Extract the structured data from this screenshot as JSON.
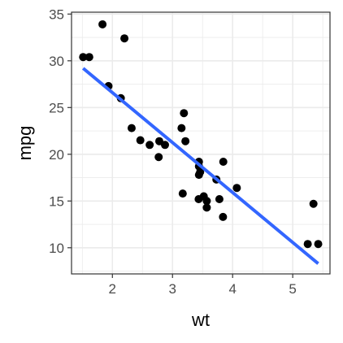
{
  "chart_data": {
    "type": "scatter",
    "title": "",
    "xlabel": "wt",
    "ylabel": "mpg",
    "xlim": [
      1.32,
      5.62
    ],
    "ylim": [
      7.2,
      35.2
    ],
    "x_ticks": [
      2,
      3,
      4,
      5
    ],
    "x_tick_labels": [
      "2",
      "3",
      "4",
      "5"
    ],
    "y_ticks": [
      10,
      15,
      20,
      25,
      30,
      35
    ],
    "y_tick_labels": [
      "10",
      "15",
      "20",
      "25",
      "30",
      "35"
    ],
    "grid": true,
    "legend": "none",
    "points": [
      {
        "x": 1.513,
        "y": 30.4
      },
      {
        "x": 1.615,
        "y": 30.4
      },
      {
        "x": 1.835,
        "y": 33.9
      },
      {
        "x": 1.935,
        "y": 27.3
      },
      {
        "x": 2.14,
        "y": 26.0
      },
      {
        "x": 2.2,
        "y": 32.4
      },
      {
        "x": 2.32,
        "y": 22.8
      },
      {
        "x": 2.465,
        "y": 21.5
      },
      {
        "x": 2.62,
        "y": 21.0
      },
      {
        "x": 2.77,
        "y": 19.7
      },
      {
        "x": 2.78,
        "y": 21.4
      },
      {
        "x": 2.875,
        "y": 21.0
      },
      {
        "x": 3.15,
        "y": 22.8
      },
      {
        "x": 3.17,
        "y": 15.8
      },
      {
        "x": 3.19,
        "y": 24.4
      },
      {
        "x": 3.215,
        "y": 21.4
      },
      {
        "x": 3.435,
        "y": 15.2
      },
      {
        "x": 3.44,
        "y": 18.7
      },
      {
        "x": 3.44,
        "y": 19.2
      },
      {
        "x": 3.44,
        "y": 17.8
      },
      {
        "x": 3.46,
        "y": 18.1
      },
      {
        "x": 3.52,
        "y": 15.5
      },
      {
        "x": 3.57,
        "y": 14.3
      },
      {
        "x": 3.57,
        "y": 15.0
      },
      {
        "x": 3.73,
        "y": 17.3
      },
      {
        "x": 3.78,
        "y": 15.2
      },
      {
        "x": 3.84,
        "y": 13.3
      },
      {
        "x": 3.845,
        "y": 19.2
      },
      {
        "x": 4.07,
        "y": 16.4
      },
      {
        "x": 5.25,
        "y": 10.4
      },
      {
        "x": 5.345,
        "y": 14.7
      },
      {
        "x": 5.424,
        "y": 10.4
      }
    ],
    "trend_line": {
      "x": [
        1.513,
        5.424
      ],
      "y": [
        29.2,
        8.3
      ],
      "color": "#3366FF"
    },
    "point_color": "#000000",
    "grid_color": "#ebebeb",
    "panel_border_color": "#333333"
  }
}
